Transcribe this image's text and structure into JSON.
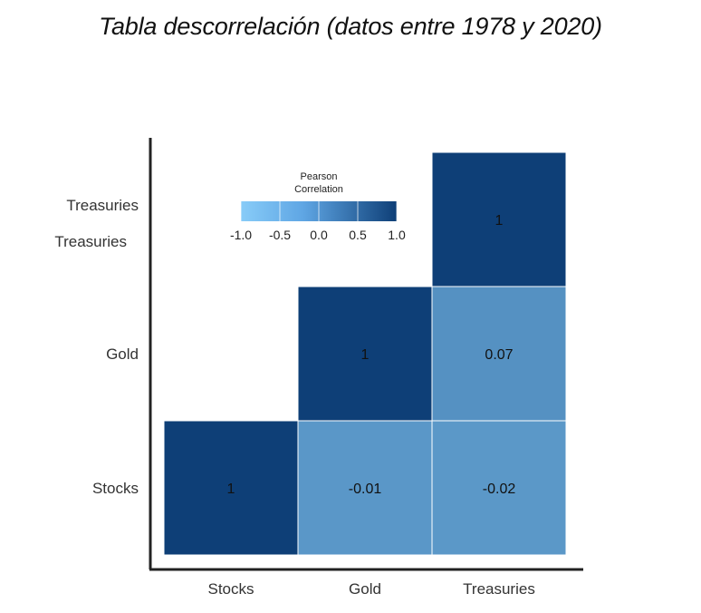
{
  "chart_data": {
    "type": "heatmap",
    "title": "Tabla descorrelación (datos entre 1978 y 2020)",
    "x_categories": [
      "Stocks",
      "Gold",
      "Treasuries"
    ],
    "y_categories": [
      "Stocks",
      "Gold",
      "Treasuries"
    ],
    "y_tick_label_duplicate": "Treasuries",
    "cells": [
      {
        "x": "Stocks",
        "y": "Stocks",
        "value": 1,
        "label": "1"
      },
      {
        "x": "Gold",
        "y": "Stocks",
        "value": -0.01,
        "label": "-0.01"
      },
      {
        "x": "Treasuries",
        "y": "Stocks",
        "value": -0.02,
        "label": "-0.02"
      },
      {
        "x": "Gold",
        "y": "Gold",
        "value": 1,
        "label": "1"
      },
      {
        "x": "Treasuries",
        "y": "Gold",
        "value": 0.07,
        "label": "0.07"
      },
      {
        "x": "Treasuries",
        "y": "Treasuries",
        "value": 1,
        "label": "1"
      }
    ],
    "legend": {
      "title_line1": "Pearson",
      "title_line2": "Correlation",
      "range": [
        -1.0,
        1.0
      ],
      "ticks": [
        "-1.0",
        "-0.5",
        "0.0",
        "0.5",
        "1.0"
      ],
      "placement": "top-left inside plot"
    },
    "colors": {
      "low": "#88CCF8",
      "high": "#0E3F77",
      "axis": "#222222",
      "cell_border": "#ffffff"
    }
  }
}
